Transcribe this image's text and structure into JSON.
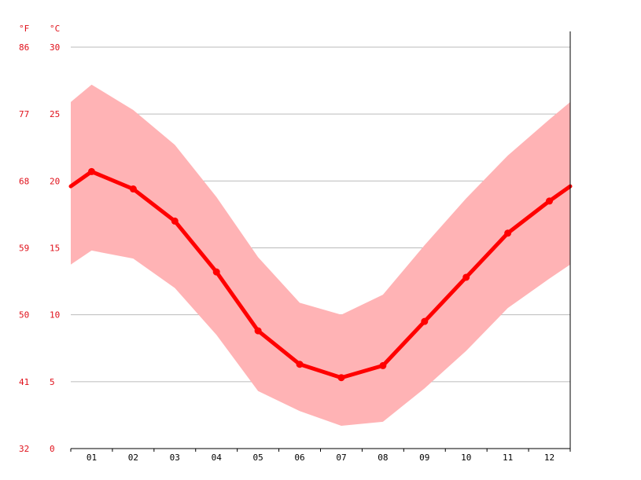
{
  "chart_data": {
    "type": "line",
    "axis_units": {
      "fahrenheit": "°F",
      "celsius": "°C"
    },
    "y_ticks_c": [
      0,
      5,
      10,
      15,
      20,
      25,
      30
    ],
    "y_ticks_f": [
      "32",
      "41",
      "50",
      "59",
      "68",
      "77",
      "86"
    ],
    "ylim": [
      0,
      30
    ],
    "grid": true,
    "categories": [
      "01",
      "02",
      "03",
      "04",
      "05",
      "06",
      "07",
      "08",
      "09",
      "10",
      "11",
      "12"
    ],
    "series": [
      {
        "values": [
          20.7,
          19.4,
          17.0,
          13.2,
          8.8,
          6.3,
          5.3,
          6.2,
          9.5,
          12.8,
          16.1,
          18.5
        ]
      }
    ],
    "band": {
      "upper": [
        27.2,
        25.3,
        22.7,
        18.8,
        14.3,
        10.9,
        10.0,
        11.5,
        15.2,
        18.7,
        21.9,
        24.6
      ],
      "lower": [
        14.8,
        14.2,
        12.0,
        8.5,
        4.3,
        2.8,
        1.7,
        2.0,
        4.5,
        7.3,
        10.5,
        12.7
      ]
    },
    "colors": {
      "line": "#ff0000",
      "band": "#ffb3b5",
      "label": "#e0101a",
      "grid": "#bbbbbb"
    }
  }
}
